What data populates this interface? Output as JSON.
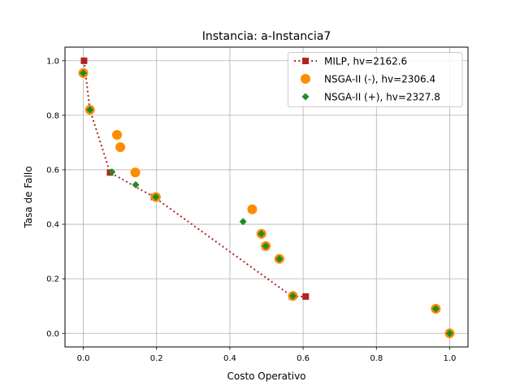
{
  "chart_data": {
    "type": "scatter",
    "title": "Instancia: a-Instancia7",
    "xlabel": "Costo Operativo",
    "ylabel": "Tasa de Fallo",
    "xlim": [
      -0.05,
      1.05
    ],
    "ylim": [
      -0.05,
      1.05
    ],
    "xticks": [
      "0.0",
      "0.2",
      "0.4",
      "0.6",
      "0.8",
      "1.0"
    ],
    "yticks": [
      "0.0",
      "0.2",
      "0.4",
      "0.6",
      "0.8",
      "1.0"
    ],
    "grid": true,
    "legend_position": "top-right",
    "series": [
      {
        "name": "MILP, hv=2162.6",
        "marker": "square",
        "line": "dotted",
        "color": "#b22222",
        "points": [
          [
            0.002,
            1.0
          ],
          [
            0.018,
            0.82
          ],
          [
            0.073,
            0.59
          ],
          [
            0.193,
            0.5
          ],
          [
            0.57,
            0.135
          ],
          [
            0.607,
            0.135
          ]
        ]
      },
      {
        "name": "NSGA-II (-), hv=2306.4",
        "marker": "circle",
        "color": "#ff8c00",
        "points": [
          [
            0.0,
            0.955
          ],
          [
            0.018,
            0.82
          ],
          [
            0.092,
            0.728
          ],
          [
            0.101,
            0.683
          ],
          [
            0.142,
            0.59
          ],
          [
            0.198,
            0.5
          ],
          [
            0.461,
            0.455
          ],
          [
            0.486,
            0.365
          ],
          [
            0.498,
            0.32
          ],
          [
            0.535,
            0.273
          ],
          [
            0.572,
            0.137
          ],
          [
            0.962,
            0.09
          ],
          [
            1.0,
            0.0
          ]
        ]
      },
      {
        "name": "NSGA-II (+), hv=2327.8",
        "marker": "diamond",
        "color": "#228b22",
        "points": [
          [
            0.0,
            0.955
          ],
          [
            0.018,
            0.82
          ],
          [
            0.078,
            0.592
          ],
          [
            0.143,
            0.545
          ],
          [
            0.198,
            0.5
          ],
          [
            0.436,
            0.41
          ],
          [
            0.486,
            0.365
          ],
          [
            0.498,
            0.32
          ],
          [
            0.535,
            0.273
          ],
          [
            0.572,
            0.137
          ],
          [
            0.962,
            0.09
          ],
          [
            1.0,
            0.0
          ]
        ]
      }
    ]
  }
}
